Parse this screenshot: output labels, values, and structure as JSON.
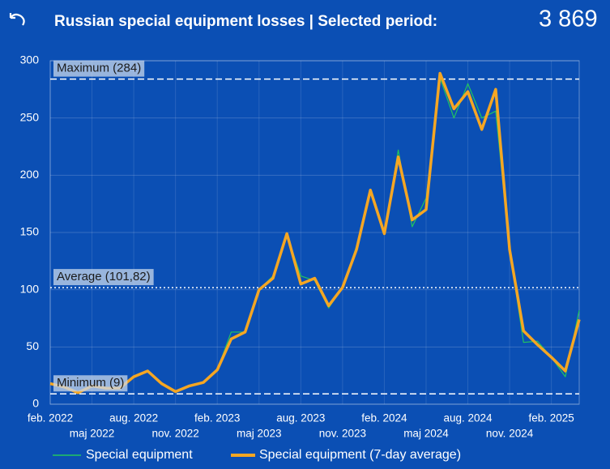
{
  "header": {
    "title": "Russian special equipment losses | Selected period:",
    "total": "3 869"
  },
  "chart_data": {
    "type": "line",
    "categories": [
      "feb. 2022",
      null,
      null,
      "maj 2022",
      null,
      null,
      "aug. 2022",
      null,
      null,
      "nov. 2022",
      null,
      null,
      "feb. 2023",
      null,
      null,
      "maj 2023",
      null,
      null,
      "aug. 2023",
      null,
      null,
      "nov. 2023",
      null,
      null,
      "feb. 2024",
      null,
      null,
      "maj 2024",
      null,
      null,
      "aug. 2024",
      null,
      null,
      "nov. 2024",
      null,
      null,
      "feb. 2025",
      null,
      null
    ],
    "series": [
      {
        "name": "Special equipment",
        "color": "#22c55e",
        "width": 1.2,
        "values": [
          18,
          15,
          11,
          16,
          14,
          14,
          24,
          29,
          18,
          11,
          16,
          19,
          30,
          63,
          63,
          100,
          112,
          148,
          112,
          108,
          84,
          102,
          138,
          186,
          149,
          222,
          155,
          180,
          285,
          250,
          280,
          250,
          256,
          135,
          54,
          55,
          41,
          24,
          82
        ]
      },
      {
        "name": "Special equipment (7-day average)",
        "color": "#f5a623",
        "width": 3.5,
        "values": [
          18,
          15,
          10,
          16,
          14,
          14,
          24,
          29,
          18,
          11,
          16,
          19,
          30,
          57,
          63,
          100,
          110,
          149,
          105,
          110,
          86,
          102,
          135,
          187,
          149,
          216,
          161,
          170,
          289,
          258,
          273,
          240,
          275,
          135,
          64,
          52,
          41,
          29,
          74
        ]
      }
    ],
    "ylim": [
      0,
      300
    ],
    "yticks": [
      0,
      50,
      100,
      150,
      200,
      250,
      300
    ],
    "grid": true,
    "reference_lines": [
      {
        "label": "Maximum (284)",
        "value": 284,
        "style": "dashed"
      },
      {
        "label": "Average (101,82)",
        "value": 101.82,
        "style": "dotted"
      },
      {
        "label": "Minimum (9)",
        "value": 9,
        "style": "dashed"
      }
    ]
  }
}
